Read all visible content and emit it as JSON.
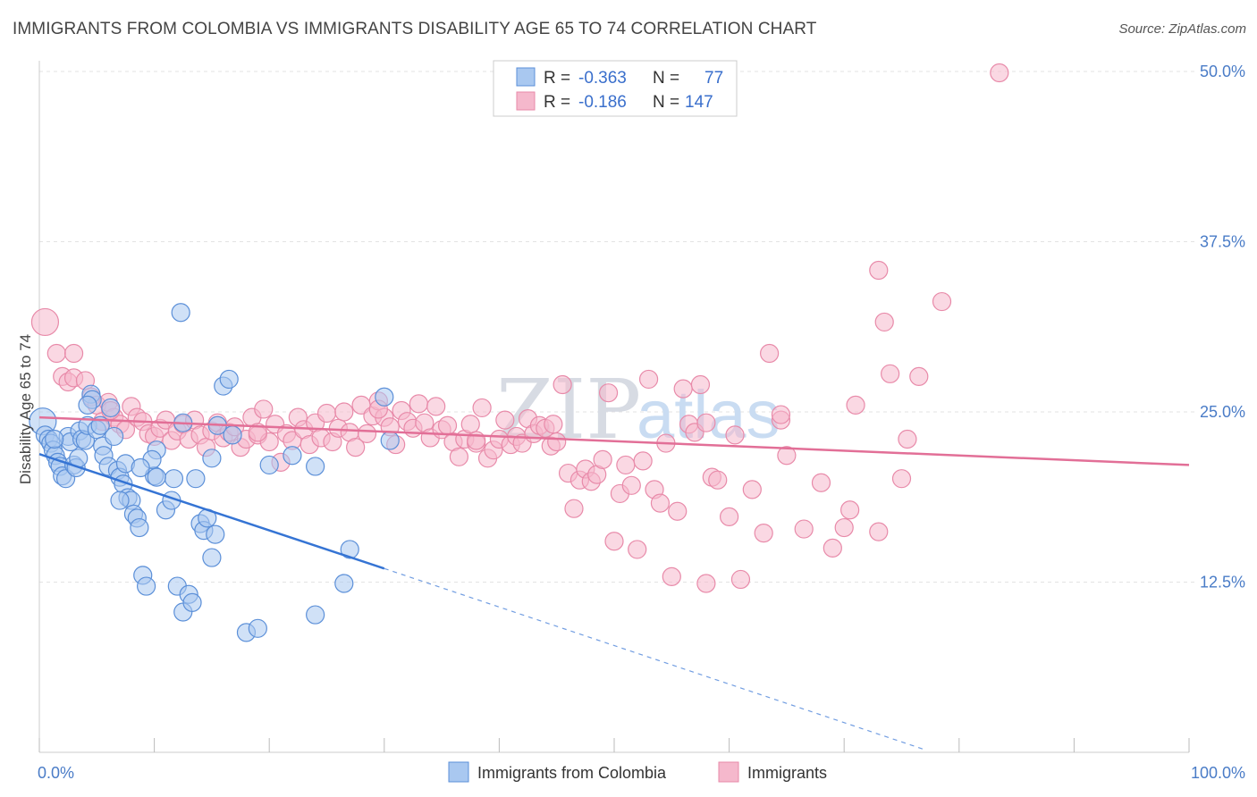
{
  "title": "IMMIGRANTS FROM COLOMBIA VS IMMIGRANTS DISABILITY AGE 65 TO 74 CORRELATION CHART",
  "source": "Source: ZipAtlas.com",
  "watermark": {
    "part1": "ZIP",
    "part2": "atlas"
  },
  "legend": {
    "rows": [
      {
        "r_label": "R =",
        "r_value": "-0.363",
        "n_label": "N =",
        "n_value": "77",
        "color": "#a9c8f0"
      },
      {
        "r_label": "R =",
        "r_value": "-0.186",
        "n_label": "N =",
        "n_value": "147",
        "color": "#f5b8cc"
      }
    ]
  },
  "bottom_legend": [
    {
      "label": "Immigrants from Colombia",
      "color": "#a9c8f0"
    },
    {
      "label": "Immigrants",
      "color": "#f5b8cc"
    }
  ],
  "chart_data": {
    "type": "scatter",
    "ylabel": "Disability Age 65 to 74",
    "xlim": [
      0,
      100
    ],
    "ylim": [
      0,
      50
    ],
    "y_ticks": [
      {
        "value": 12.5,
        "label": "12.5%"
      },
      {
        "value": 25,
        "label": "25.0%"
      },
      {
        "value": 37.5,
        "label": "37.5%"
      },
      {
        "value": 50,
        "label": "50.0%"
      }
    ],
    "x_ticks": [
      {
        "value": 0,
        "label": "0.0%"
      },
      {
        "value": 100,
        "label": "100.0%"
      }
    ],
    "grid": true,
    "colors": {
      "blue_fill": "#a9c8f0",
      "blue_stroke": "#5b8fd8",
      "blue_line": "#3574d4",
      "pink_fill": "#f5b8cc",
      "pink_stroke": "#e88aa9",
      "pink_line": "#e26f97"
    },
    "series": [
      {
        "name": "Immigrants from Colombia",
        "trend": {
          "x0": 0,
          "y0": 21.9,
          "x1": 30,
          "y1": 13.5,
          "dash_to_x": 77,
          "dash_to_y": 0.2
        },
        "points": [
          [
            0.3,
            24.3
          ],
          [
            0.5,
            23.3
          ],
          [
            0.8,
            23.0
          ],
          [
            1.0,
            22.7
          ],
          [
            1.2,
            22.2
          ],
          [
            1.4,
            21.8
          ],
          [
            1.6,
            21.3
          ],
          [
            1.8,
            21.0
          ],
          [
            2.0,
            20.3
          ],
          [
            2.3,
            20.1
          ],
          [
            2.5,
            23.2
          ],
          [
            2.7,
            22.8
          ],
          [
            3.0,
            21.1
          ],
          [
            3.2,
            20.9
          ],
          [
            3.5,
            23.6
          ],
          [
            3.7,
            23.0
          ],
          [
            4.0,
            22.9
          ],
          [
            4.2,
            24.0
          ],
          [
            4.5,
            26.3
          ],
          [
            4.6,
            25.9
          ],
          [
            5.0,
            23.7
          ],
          [
            5.3,
            24.0
          ],
          [
            5.5,
            22.5
          ],
          [
            5.6,
            21.8
          ],
          [
            6.0,
            21.0
          ],
          [
            6.2,
            25.3
          ],
          [
            6.5,
            23.2
          ],
          [
            6.8,
            20.7
          ],
          [
            7.0,
            20.2
          ],
          [
            7.3,
            19.7
          ],
          [
            7.5,
            21.2
          ],
          [
            7.7,
            18.7
          ],
          [
            8.0,
            18.5
          ],
          [
            8.2,
            17.5
          ],
          [
            8.5,
            17.2
          ],
          [
            8.7,
            16.5
          ],
          [
            9.0,
            13.0
          ],
          [
            9.3,
            12.2
          ],
          [
            10.0,
            20.3
          ],
          [
            10.2,
            22.2
          ],
          [
            7.0,
            18.5
          ],
          [
            11.0,
            17.8
          ],
          [
            11.5,
            18.5
          ],
          [
            12.0,
            12.2
          ],
          [
            12.3,
            32.3
          ],
          [
            12.5,
            10.3
          ],
          [
            13.0,
            11.6
          ],
          [
            13.3,
            11.0
          ],
          [
            13.6,
            20.1
          ],
          [
            14.0,
            16.8
          ],
          [
            14.3,
            16.3
          ],
          [
            14.6,
            17.2
          ],
          [
            15.0,
            14.3
          ],
          [
            15.3,
            16.0
          ],
          [
            11.7,
            20.1
          ],
          [
            15.0,
            21.6
          ],
          [
            16.0,
            26.9
          ],
          [
            16.5,
            27.4
          ],
          [
            16.8,
            23.3
          ],
          [
            15.5,
            24.0
          ],
          [
            12.5,
            24.2
          ],
          [
            10.2,
            20.2
          ],
          [
            9.8,
            21.5
          ],
          [
            18.0,
            8.8
          ],
          [
            19.0,
            9.1
          ],
          [
            20.0,
            21.1
          ],
          [
            22.0,
            21.8
          ],
          [
            24.0,
            21.0
          ],
          [
            27.0,
            14.9
          ],
          [
            30.0,
            26.1
          ],
          [
            30.5,
            22.9
          ],
          [
            24.0,
            10.1
          ],
          [
            26.5,
            12.4
          ],
          [
            4.2,
            25.5
          ],
          [
            8.8,
            20.9
          ],
          [
            3.4,
            21.6
          ],
          [
            1.3,
            23.0
          ]
        ]
      },
      {
        "name": "Immigrants",
        "trend": {
          "x0": 0,
          "y0": 24.6,
          "x1": 100,
          "y1": 21.1
        },
        "points": [
          [
            0.5,
            31.6
          ],
          [
            1.5,
            29.3
          ],
          [
            2.0,
            27.6
          ],
          [
            2.5,
            27.2
          ],
          [
            3.0,
            27.5
          ],
          [
            4.0,
            27.3
          ],
          [
            4.5,
            26.1
          ],
          [
            5.0,
            25.5
          ],
          [
            5.5,
            24.3
          ],
          [
            6.0,
            25.7
          ],
          [
            6.5,
            24.6
          ],
          [
            7.0,
            24.1
          ],
          [
            7.5,
            23.7
          ],
          [
            8.0,
            25.4
          ],
          [
            8.5,
            24.6
          ],
          [
            9.0,
            24.3
          ],
          [
            9.5,
            23.4
          ],
          [
            10.0,
            23.2
          ],
          [
            10.5,
            23.8
          ],
          [
            11.0,
            24.4
          ],
          [
            11.5,
            22.9
          ],
          [
            12.0,
            23.6
          ],
          [
            12.5,
            24.1
          ],
          [
            13.0,
            23.0
          ],
          [
            13.5,
            24.4
          ],
          [
            14.0,
            23.3
          ],
          [
            14.5,
            22.4
          ],
          [
            15.0,
            23.6
          ],
          [
            15.5,
            24.2
          ],
          [
            16.0,
            23.1
          ],
          [
            16.5,
            23.5
          ],
          [
            17.0,
            23.9
          ],
          [
            17.5,
            22.4
          ],
          [
            18.0,
            23.0
          ],
          [
            18.5,
            24.6
          ],
          [
            19.0,
            23.3
          ],
          [
            19.5,
            25.2
          ],
          [
            20.0,
            22.8
          ],
          [
            20.5,
            24.1
          ],
          [
            21.0,
            21.3
          ],
          [
            21.5,
            23.4
          ],
          [
            22.0,
            22.9
          ],
          [
            22.5,
            24.6
          ],
          [
            23.0,
            23.7
          ],
          [
            23.5,
            22.6
          ],
          [
            24.0,
            24.2
          ],
          [
            24.5,
            23.1
          ],
          [
            25.0,
            24.9
          ],
          [
            25.5,
            22.8
          ],
          [
            26.0,
            23.8
          ],
          [
            26.5,
            25.0
          ],
          [
            27.0,
            23.5
          ],
          [
            27.5,
            22.4
          ],
          [
            28.0,
            25.5
          ],
          [
            28.5,
            23.4
          ],
          [
            29.0,
            24.7
          ],
          [
            29.5,
            25.8
          ],
          [
            30.0,
            24.6
          ],
          [
            30.5,
            23.9
          ],
          [
            31.0,
            22.6
          ],
          [
            31.5,
            25.1
          ],
          [
            32.0,
            24.3
          ],
          [
            32.5,
            23.8
          ],
          [
            33.0,
            25.6
          ],
          [
            33.5,
            24.2
          ],
          [
            34.0,
            23.1
          ],
          [
            34.5,
            25.4
          ],
          [
            35.0,
            23.7
          ],
          [
            35.5,
            24.0
          ],
          [
            36.0,
            22.8
          ],
          [
            36.5,
            21.7
          ],
          [
            37.0,
            23.0
          ],
          [
            37.5,
            24.1
          ],
          [
            38.0,
            22.7
          ],
          [
            38.5,
            25.3
          ],
          [
            39.0,
            21.6
          ],
          [
            39.5,
            22.2
          ],
          [
            40.0,
            23.0
          ],
          [
            40.5,
            24.4
          ],
          [
            41.0,
            22.6
          ],
          [
            41.5,
            23.2
          ],
          [
            42.0,
            22.7
          ],
          [
            42.5,
            24.5
          ],
          [
            43.0,
            23.4
          ],
          [
            43.5,
            24.0
          ],
          [
            44.0,
            23.8
          ],
          [
            44.5,
            22.5
          ],
          [
            45.0,
            22.8
          ],
          [
            45.5,
            27.0
          ],
          [
            46.0,
            20.5
          ],
          [
            46.5,
            17.9
          ],
          [
            47.0,
            20.0
          ],
          [
            47.5,
            20.8
          ],
          [
            48.0,
            19.9
          ],
          [
            48.5,
            20.4
          ],
          [
            49.0,
            21.5
          ],
          [
            49.5,
            26.4
          ],
          [
            50.0,
            15.5
          ],
          [
            50.5,
            19.0
          ],
          [
            51.0,
            21.1
          ],
          [
            51.5,
            19.6
          ],
          [
            52.0,
            14.9
          ],
          [
            52.5,
            21.4
          ],
          [
            53.0,
            27.4
          ],
          [
            53.5,
            19.3
          ],
          [
            54.0,
            18.3
          ],
          [
            54.5,
            22.7
          ],
          [
            55.0,
            12.9
          ],
          [
            55.5,
            17.7
          ],
          [
            56.0,
            26.7
          ],
          [
            56.5,
            24.1
          ],
          [
            57.0,
            23.5
          ],
          [
            57.5,
            27.0
          ],
          [
            58.0,
            12.4
          ],
          [
            58.5,
            20.2
          ],
          [
            59.0,
            20.0
          ],
          [
            60.0,
            17.3
          ],
          [
            60.5,
            23.3
          ],
          [
            61.0,
            12.7
          ],
          [
            62.0,
            19.3
          ],
          [
            63.0,
            16.1
          ],
          [
            63.5,
            29.3
          ],
          [
            64.5,
            24.4
          ],
          [
            65.0,
            21.8
          ],
          [
            66.5,
            16.4
          ],
          [
            68.0,
            19.8
          ],
          [
            69.0,
            15.0
          ],
          [
            70.0,
            16.5
          ],
          [
            70.5,
            17.8
          ],
          [
            71.0,
            25.5
          ],
          [
            73.0,
            16.2
          ],
          [
            73.5,
            31.6
          ],
          [
            74.0,
            27.8
          ],
          [
            75.0,
            20.1
          ],
          [
            75.5,
            23.0
          ],
          [
            76.5,
            27.6
          ],
          [
            78.5,
            33.1
          ],
          [
            73.0,
            35.4
          ],
          [
            83.5,
            49.9
          ],
          [
            64.5,
            24.8
          ],
          [
            58.0,
            24.2
          ],
          [
            38.0,
            22.9
          ],
          [
            3.0,
            29.3
          ],
          [
            6.2,
            25.1
          ],
          [
            19.0,
            23.5
          ],
          [
            29.5,
            25.2
          ],
          [
            44.7,
            24.1
          ]
        ]
      }
    ]
  }
}
